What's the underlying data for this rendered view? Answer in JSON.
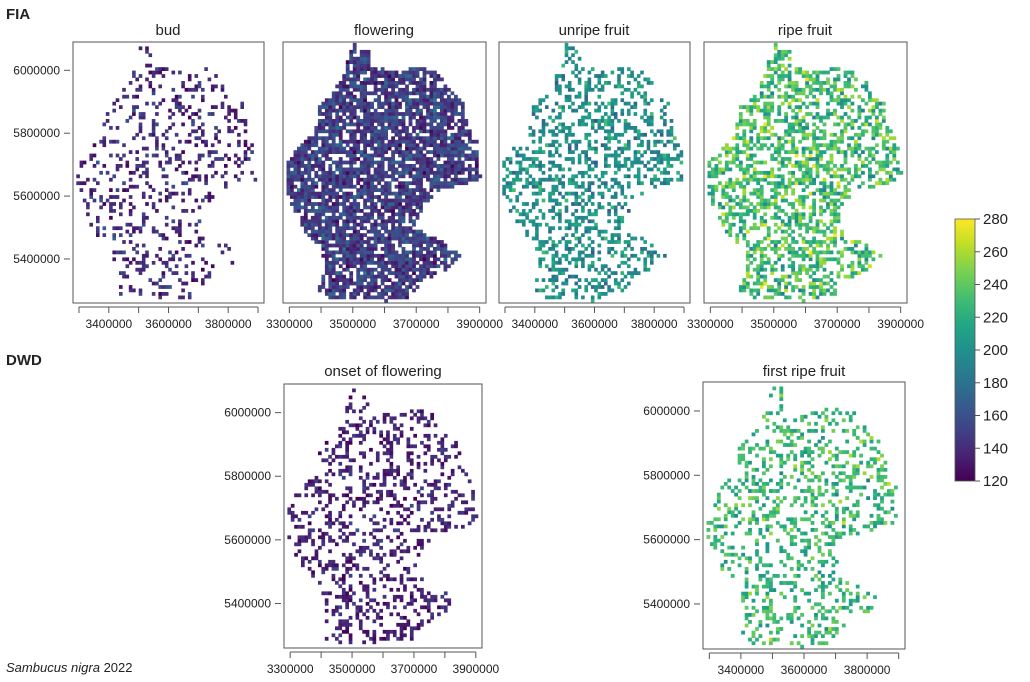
{
  "sections": {
    "top": "FIA",
    "bottom": "DWD"
  },
  "caption": {
    "species": "Sambucus nigra",
    "year": "2022"
  },
  "colorbar": {
    "min": 120,
    "max": 280,
    "ticks": [
      "120",
      "140",
      "160",
      "180",
      "200",
      "220",
      "240",
      "260",
      "280"
    ],
    "colormap": "viridis"
  },
  "chart_data": [
    {
      "type": "heatmap",
      "title": "bud",
      "group": "FIA",
      "xlabel": "",
      "ylabel": "",
      "xlim": [
        3280000,
        3920000
      ],
      "ylim": [
        5260000,
        6090000
      ],
      "xticks": [
        3300000,
        3400000,
        3500000,
        3600000,
        3700000,
        3800000,
        3900000
      ],
      "xtick_labels": [
        "3400000",
        "3600000",
        "3800000"
      ],
      "yticks": [
        6000000,
        5800000,
        5600000,
        5400000
      ],
      "ytick_labels": [
        "6000000",
        "5800000",
        "5600000",
        "5400000"
      ],
      "value_mean": 140,
      "value_spread": 10,
      "density": 0.22,
      "seed": 11
    },
    {
      "type": "heatmap",
      "title": "flowering",
      "group": "FIA",
      "xlabel": "",
      "ylabel": "",
      "xlim": [
        3280000,
        3920000
      ],
      "ylim": [
        5260000,
        6090000
      ],
      "xticks": [
        3300000,
        3400000,
        3500000,
        3600000,
        3700000,
        3800000,
        3900000
      ],
      "xtick_labels": [
        "3300000",
        "3500000",
        "3700000",
        "3900000"
      ],
      "yticks": [
        6000000,
        5800000,
        5600000,
        5400000
      ],
      "ytick_labels": [],
      "value_mean": 150,
      "value_spread": 12,
      "density": 0.78,
      "seed": 23
    },
    {
      "type": "heatmap",
      "title": "unripe fruit",
      "group": "FIA",
      "xlabel": "",
      "ylabel": "",
      "xlim": [
        3280000,
        3920000
      ],
      "ylim": [
        5260000,
        6090000
      ],
      "xticks": [
        3300000,
        3400000,
        3500000,
        3600000,
        3700000,
        3800000,
        3900000
      ],
      "xtick_labels": [
        "3400000",
        "3600000",
        "3800000"
      ],
      "yticks": [
        6000000,
        5800000,
        5600000,
        5400000
      ],
      "ytick_labels": [],
      "value_mean": 200,
      "value_spread": 14,
      "density": 0.36,
      "seed": 37
    },
    {
      "type": "heatmap",
      "title": "ripe fruit",
      "group": "FIA",
      "xlabel": "",
      "ylabel": "",
      "xlim": [
        3280000,
        3920000
      ],
      "ylim": [
        5260000,
        6090000
      ],
      "xticks": [
        3300000,
        3400000,
        3500000,
        3600000,
        3700000,
        3800000,
        3900000
      ],
      "xtick_labels": [
        "3300000",
        "3500000",
        "3700000",
        "3900000"
      ],
      "yticks": [
        6000000,
        5800000,
        5600000,
        5400000
      ],
      "ytick_labels": [],
      "value_mean": 232,
      "value_spread": 18,
      "density": 0.48,
      "seed": 53
    },
    {
      "type": "heatmap",
      "title": "onset of flowering",
      "group": "DWD",
      "xlabel": "",
      "ylabel": "",
      "xlim": [
        3280000,
        3920000
      ],
      "ylim": [
        5260000,
        6090000
      ],
      "xticks": [
        3300000,
        3400000,
        3500000,
        3600000,
        3700000,
        3800000,
        3900000
      ],
      "xtick_labels": [
        "3300000",
        "3500000",
        "3700000",
        "3900000"
      ],
      "yticks": [
        6000000,
        5800000,
        5600000,
        5400000
      ],
      "ytick_labels": [
        "6000000",
        "5800000",
        "5600000",
        "5400000"
      ],
      "value_mean": 136,
      "value_spread": 8,
      "density": 0.3,
      "seed": 71
    },
    {
      "type": "heatmap",
      "title": "first ripe fruit",
      "group": "DWD",
      "xlabel": "",
      "ylabel": "",
      "xlim": [
        3280000,
        3920000
      ],
      "ylim": [
        5260000,
        6090000
      ],
      "xticks": [
        3300000,
        3400000,
        3500000,
        3600000,
        3700000,
        3800000,
        3900000
      ],
      "xtick_labels": [
        "3400000",
        "3600000",
        "3800000"
      ],
      "yticks": [
        6000000,
        5800000,
        5600000,
        5400000
      ],
      "ytick_labels": [
        "6000000",
        "5800000",
        "5600000",
        "5400000"
      ],
      "value_mean": 228,
      "value_spread": 14,
      "density": 0.3,
      "seed": 89
    }
  ]
}
